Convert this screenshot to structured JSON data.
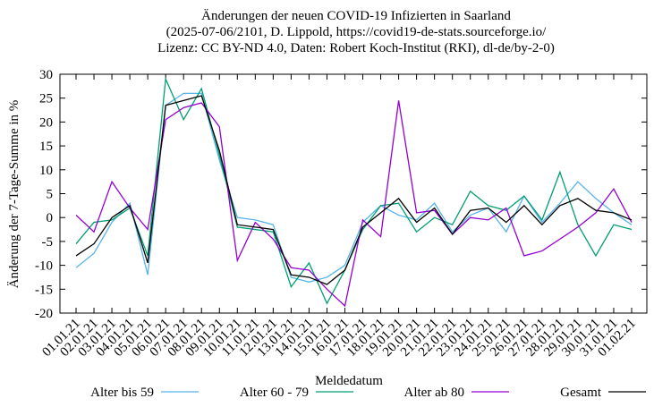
{
  "chart_data": {
    "type": "line",
    "title": [
      "Änderungen der neuen COVID-19 Infizierten in Saarland",
      "(2025-07-06/2101, D. Lippold, https://covid19-de-stats.sourceforge.io/",
      "Lizenz: CC BY-ND 4.0, Daten: Robert Koch-Institut (RKI), dl-de/by-2-0)"
    ],
    "x_label": "Meldedatum",
    "y_label": "Änderung der 7-Tage-Summe in %",
    "categories": [
      "01.01.21",
      "02.01.21",
      "03.01.21",
      "04.01.21",
      "05.01.21",
      "06.01.21",
      "07.01.21",
      "08.01.21",
      "09.01.21",
      "10.01.21",
      "11.01.21",
      "12.01.21",
      "13.01.21",
      "14.01.21",
      "15.01.21",
      "16.01.21",
      "17.01.21",
      "18.01.21",
      "19.01.21",
      "20.01.21",
      "21.01.21",
      "22.01.21",
      "23.01.21",
      "24.01.21",
      "25.01.21",
      "26.01.21",
      "27.01.21",
      "28.01.21",
      "29.01.21",
      "30.01.21",
      "31.01.21",
      "01.02.21"
    ],
    "series": [
      {
        "name": "Alter bis 59",
        "color": "#56b4e9",
        "values": [
          -10.5,
          -7.5,
          -1,
          3,
          -12,
          23.5,
          26,
          26,
          12,
          0,
          -0.5,
          -1.5,
          -12.5,
          -13.5,
          -12.5,
          -10,
          -1,
          2.5,
          0.5,
          -0.5,
          3,
          -3,
          0.5,
          2,
          -3,
          4.5,
          -1,
          3,
          7.5,
          4,
          1,
          -1.5
        ]
      },
      {
        "name": "Alter 60 - 79",
        "color": "#009e73",
        "values": [
          -5.5,
          -1,
          -0.5,
          2,
          -8,
          29,
          20.5,
          27,
          13,
          -2,
          -2.5,
          -3,
          -14.5,
          -9.5,
          -18,
          -11,
          -2.5,
          2.5,
          3,
          -3,
          0,
          -1.5,
          5.5,
          2.5,
          1.5,
          4.5,
          -0.5,
          9.5,
          -1.5,
          -8,
          -1.5,
          -2.5
        ]
      },
      {
        "name": "Alter ab 80",
        "color": "#9400d3",
        "values": [
          0.5,
          -3,
          7.5,
          2,
          -2.5,
          20.5,
          23,
          24,
          19,
          -9,
          -1,
          -4.5,
          -10.5,
          -11,
          -15,
          -18.5,
          -0.5,
          -4,
          24.5,
          1,
          1.5,
          -3.5,
          0,
          -0.5,
          2,
          -8,
          -7,
          -4.5,
          -2,
          1,
          6,
          -1
        ]
      },
      {
        "name": "Gesamt",
        "color": "#000000",
        "values": [
          -8,
          -5.5,
          0,
          2.5,
          -9.5,
          23.5,
          24.5,
          25.5,
          14,
          -1.5,
          -2,
          -2.5,
          -12,
          -12.5,
          -14,
          -11,
          -2,
          1,
          4,
          -1,
          2,
          -3.5,
          1.5,
          2,
          -1,
          2.5,
          -1.5,
          2.5,
          4,
          1.5,
          1,
          -0.5
        ]
      }
    ],
    "ylim": [
      -20,
      30
    ],
    "yticks": [
      -20,
      -15,
      -10,
      -5,
      0,
      5,
      10,
      15,
      20,
      25,
      30
    ]
  }
}
